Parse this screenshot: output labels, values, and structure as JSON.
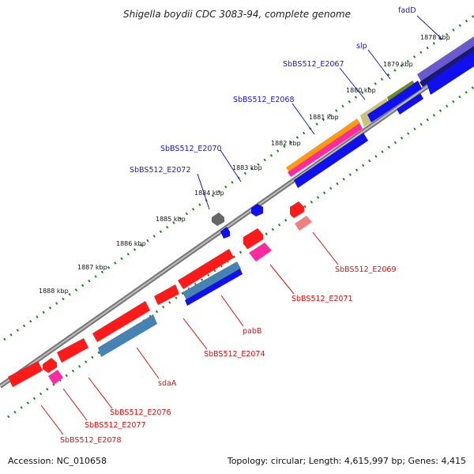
{
  "title": "Shigella boydii CDC 3083-94, complete genome",
  "footer": {
    "accession": "Accession: NC_010658",
    "stats": "Topology: circular; Length: 4,615,997 bp; Genes: 4,415"
  },
  "colors": {
    "backbone": "#8a8a8a",
    "tick": "#1e8c1e",
    "forward_label": "#1a1acc",
    "reverse_label": "#dd1111",
    "red": "#ff1a1a",
    "blue": "#1010ee",
    "steel": "#4682b4",
    "magenta": "#ff2aa0",
    "orange": "#ff9a10",
    "olive": "#6b8e23",
    "khaki": "#c8c27a",
    "slate": "#6a5acd",
    "salmon": "#f08080",
    "gray": "#666666"
  },
  "kbp_labels": [
    "1878 kbp",
    "1879 kbp",
    "1880 kbp",
    "1881 kbp",
    "1882 kbp",
    "1883 kbp",
    "1884 kbp",
    "1885 kbp",
    "1886 kbp",
    "1887 kbp",
    "1888 kbp"
  ],
  "forward_genes": [
    "fadD",
    "slp",
    "SbBS512_E2067",
    "SbBS512_E2068",
    "SbBS512_E2070",
    "SbBS512_E2072"
  ],
  "reverse_genes": [
    "SbBS512_E2069",
    "SbBS512_E2071",
    "pabB",
    "SbBS512_E2074",
    "sdaA",
    "SbBS512_E2076",
    "SbBS512_E2077",
    "SbBS512_E2078"
  ]
}
